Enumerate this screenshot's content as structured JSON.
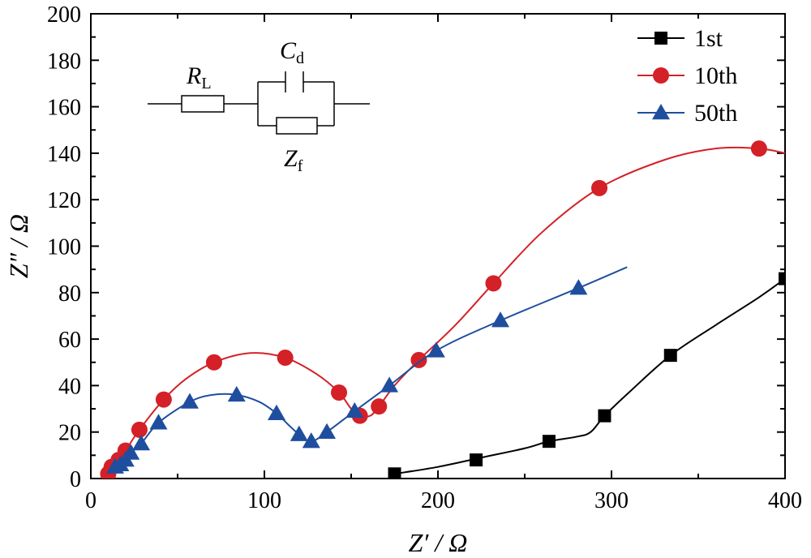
{
  "chart_data": {
    "type": "line",
    "title": "",
    "xlabel": "Z′ / Ω",
    "ylabel": "Z″ / Ω",
    "xlim": [
      0,
      400
    ],
    "ylim": [
      0,
      200
    ],
    "x_ticks": [
      "0",
      "100",
      "200",
      "300",
      "400"
    ],
    "y_ticks": [
      "0",
      "20",
      "40",
      "60",
      "80",
      "100",
      "120",
      "140",
      "160",
      "180",
      "200"
    ],
    "grid": false,
    "legend_position": "top-right",
    "series": [
      {
        "name": "1st",
        "color": "#000000",
        "marker": "square",
        "points": [
          [
            175,
            2
          ],
          [
            222,
            8
          ],
          [
            264,
            16
          ],
          [
            296,
            27
          ],
          [
            334,
            53
          ],
          [
            400,
            86
          ]
        ],
        "curve": [
          [
            175,
            2
          ],
          [
            200,
            5
          ],
          [
            225,
            9
          ],
          [
            250,
            13
          ],
          [
            264,
            16
          ],
          [
            280,
            18
          ],
          [
            288,
            20
          ],
          [
            296,
            27
          ],
          [
            310,
            37
          ],
          [
            334,
            53
          ],
          [
            360,
            66
          ],
          [
            385,
            78
          ],
          [
            400,
            86
          ]
        ]
      },
      {
        "name": "10th",
        "color": "#d42027",
        "marker": "circle",
        "points": [
          [
            10,
            2
          ],
          [
            12,
            5
          ],
          [
            16,
            8
          ],
          [
            20,
            12
          ],
          [
            28,
            21
          ],
          [
            42,
            34
          ],
          [
            71,
            50
          ],
          [
            112,
            52
          ],
          [
            143,
            37
          ],
          [
            155,
            27
          ],
          [
            166,
            31
          ],
          [
            189,
            51
          ],
          [
            232,
            84
          ],
          [
            293,
            125
          ],
          [
            385,
            142
          ]
        ],
        "curve": [
          [
            10,
            2
          ],
          [
            12,
            5
          ],
          [
            16,
            8
          ],
          [
            20,
            12
          ],
          [
            28,
            21
          ],
          [
            42,
            34
          ],
          [
            55,
            43
          ],
          [
            71,
            50
          ],
          [
            92,
            54
          ],
          [
            112,
            52
          ],
          [
            130,
            45
          ],
          [
            143,
            37
          ],
          [
            150,
            30
          ],
          [
            155,
            27
          ],
          [
            161,
            27
          ],
          [
            166,
            31
          ],
          [
            175,
            40
          ],
          [
            189,
            51
          ],
          [
            210,
            66
          ],
          [
            232,
            84
          ],
          [
            260,
            106
          ],
          [
            293,
            125
          ],
          [
            330,
            137
          ],
          [
            360,
            142
          ],
          [
            385,
            142
          ],
          [
            400,
            140
          ]
        ]
      },
      {
        "name": "50th",
        "color": "#1f4e9e",
        "marker": "triangle",
        "points": [
          [
            14,
            5
          ],
          [
            17,
            6
          ],
          [
            20,
            8
          ],
          [
            23,
            11
          ],
          [
            29,
            15
          ],
          [
            39,
            24
          ],
          [
            57,
            33
          ],
          [
            84,
            36
          ],
          [
            107,
            28
          ],
          [
            120,
            19
          ],
          [
            127,
            16
          ],
          [
            136,
            20
          ],
          [
            152,
            29
          ],
          [
            172,
            40
          ],
          [
            199,
            55
          ],
          [
            236,
            68
          ],
          [
            281,
            82
          ]
        ],
        "curve": [
          [
            14,
            5
          ],
          [
            17,
            6
          ],
          [
            20,
            8
          ],
          [
            23,
            11
          ],
          [
            29,
            15
          ],
          [
            39,
            24
          ],
          [
            57,
            33
          ],
          [
            70,
            36
          ],
          [
            84,
            36
          ],
          [
            97,
            33
          ],
          [
            107,
            28
          ],
          [
            114,
            23
          ],
          [
            120,
            19
          ],
          [
            127,
            16
          ],
          [
            136,
            20
          ],
          [
            152,
            29
          ],
          [
            172,
            40
          ],
          [
            199,
            55
          ],
          [
            236,
            68
          ],
          [
            281,
            82
          ],
          [
            309,
            91
          ]
        ]
      }
    ],
    "annotations": {
      "circuit": {
        "labels": [
          {
            "main": "R",
            "sub": "L"
          },
          {
            "main": "C",
            "sub": "d"
          },
          {
            "main": "Z",
            "sub": "f"
          }
        ]
      }
    }
  }
}
